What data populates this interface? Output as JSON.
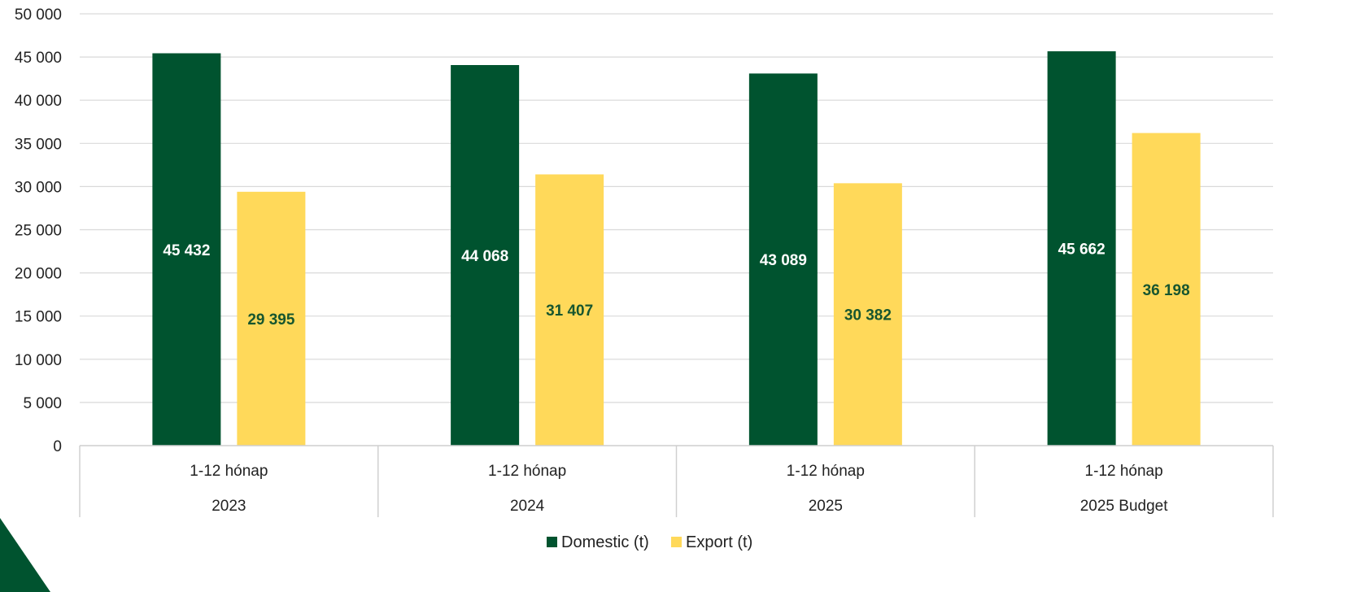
{
  "colors": {
    "domestic": "#00532F",
    "export": "#FFD95A",
    "label_on_domestic": "#FFFFFF",
    "label_on_export": "#17562F",
    "gridline": "#D9D9D9",
    "corner_triangle": "#00532F"
  },
  "chart_data": {
    "type": "bar",
    "title": "",
    "xlabel": "",
    "ylabel": "",
    "ylim": [
      0,
      50000
    ],
    "yticks": [
      0,
      5000,
      10000,
      15000,
      20000,
      25000,
      30000,
      35000,
      40000,
      45000,
      50000
    ],
    "ytick_labels": [
      "0",
      "5 000",
      "10 000",
      "15 000",
      "20 000",
      "25 000",
      "30 000",
      "35 000",
      "40 000",
      "45 000",
      "50 000"
    ],
    "grid": true,
    "legend_position": "bottom-center",
    "categories": [
      {
        "period": "1-12 hónap",
        "group": "2023"
      },
      {
        "period": "1-12 hónap",
        "group": "2024"
      },
      {
        "period": "1-12 hónap",
        "group": "2025"
      },
      {
        "period": "1-12 hónap",
        "group": "2025 Budget"
      }
    ],
    "series": [
      {
        "name": "Domestic (t)",
        "values": [
          45432,
          44068,
          43089,
          45662
        ],
        "labels": [
          "45 432",
          "44 068",
          "43 089",
          "45 662"
        ]
      },
      {
        "name": "Export (t)",
        "values": [
          29395,
          31407,
          30382,
          36198
        ],
        "labels": [
          "29 395",
          "31 407",
          "30 382",
          "36 198"
        ]
      }
    ]
  }
}
